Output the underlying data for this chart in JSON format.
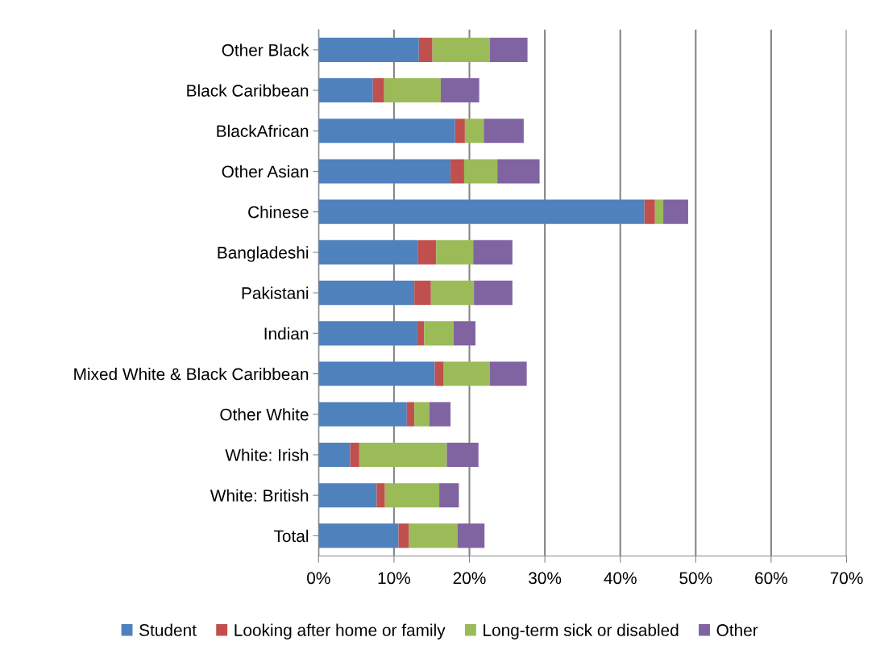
{
  "chart_data": {
    "type": "bar",
    "orientation": "horizontal",
    "stacked": true,
    "categories": [
      "Other Black",
      "Black Caribbean",
      "BlackAfrican",
      "Other Asian",
      "Chinese",
      "Bangladeshi",
      "Pakistani",
      "Indian",
      "Mixed White & Black Caribbean",
      "Other White",
      "White: Irish",
      "White: British",
      "Total"
    ],
    "series": [
      {
        "name": "Student",
        "color": "#4f81bd",
        "values": [
          13.3,
          7.2,
          18.1,
          17.5,
          43.2,
          13.2,
          12.7,
          13.1,
          15.4,
          11.7,
          4.2,
          7.7,
          10.6
        ]
      },
      {
        "name": "Looking after home or family",
        "color": "#c0504d",
        "values": [
          1.8,
          1.5,
          1.3,
          1.8,
          1.4,
          2.4,
          2.2,
          0.9,
          1.2,
          1.0,
          1.2,
          1.1,
          1.4
        ]
      },
      {
        "name": "Long-term sick or disabled",
        "color": "#9bbb59",
        "values": [
          7.6,
          7.5,
          2.5,
          4.4,
          1.1,
          4.9,
          5.7,
          3.9,
          6.1,
          2.0,
          11.6,
          7.2,
          6.4
        ]
      },
      {
        "name": "Other",
        "color": "#8064a2",
        "values": [
          5.0,
          5.1,
          5.3,
          5.6,
          3.3,
          5.2,
          5.1,
          2.9,
          4.9,
          2.8,
          4.2,
          2.6,
          3.6
        ]
      }
    ],
    "xlim": [
      0,
      70
    ],
    "xticks": [
      {
        "value": 0,
        "label": "0%"
      },
      {
        "value": 10,
        "label": "10%"
      },
      {
        "value": 20,
        "label": "20%"
      },
      {
        "value": 30,
        "label": "30%"
      },
      {
        "value": 40,
        "label": "40%"
      },
      {
        "value": 50,
        "label": "50%"
      },
      {
        "value": 60,
        "label": "60%"
      },
      {
        "value": 70,
        "label": "70%"
      }
    ],
    "grid": "x",
    "legend": "bottom"
  }
}
